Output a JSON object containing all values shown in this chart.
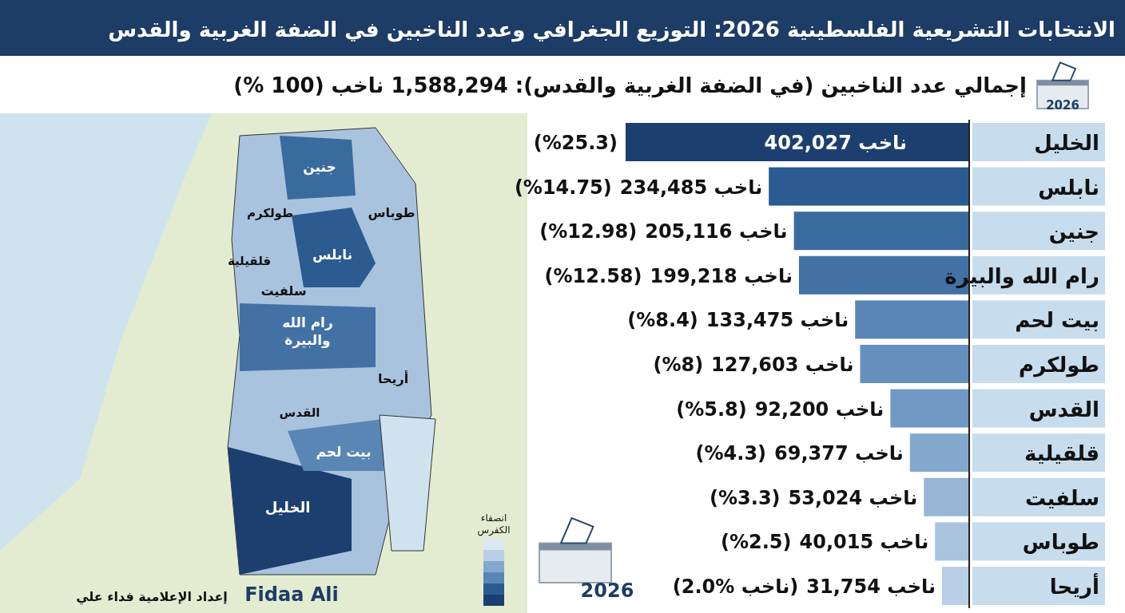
{
  "chart_data": {
    "type": "bar",
    "orientation": "horizontal",
    "data_labels": false,
    "title": "الانتخابات التشريعية الفلسطينية 2026: التوزيع الجغرافي وعدد الناخبين في الضفة الغربية والقدس",
    "subtitle": "إجمالي عدد الناخبين (في الضفة الغربية والقدس): 1,588,294 ناخب (100 %)",
    "categories": [
      "الخليل",
      "نابلس",
      "جنين",
      "رام الله والبيرة",
      "بيت لحم",
      "طولكرم",
      "القدس",
      "قلقيلية",
      "سلفيت",
      "طوباس",
      "أريحا"
    ],
    "values": [
      402027,
      234485,
      205116,
      199218,
      133475,
      127603,
      92200,
      69377,
      53024,
      40015,
      31754
    ],
    "colors": [
      "#1c3f70",
      "#2b5b91",
      "#3a6b9e",
      "#4272a5",
      "#5a86b5",
      "#6590bd",
      "#7199c3",
      "#84a8cd",
      "#97b6d6",
      "#a9c3de",
      "#b9cfe6"
    ],
    "value_labels": [
      "402,027 ناخب",
      "234,485 ناخب",
      "205,116 ناخب",
      "199,218 ناخب",
      "133,475 ناخب",
      "127,603 ناخب",
      "92,200 ناخب",
      "69,377 ناخب",
      "53,024 ناخب",
      "40,015 ناخب",
      "31,754 ناخب"
    ],
    "annotations": [
      "(%25.3)",
      "(%14.75)",
      "(%12.98)",
      "(%12.58)",
      "(%8.4)",
      "(%8)",
      "(%5.8)",
      "(%4.3)",
      "(%3.3)",
      "(%2.5)",
      "(2.0% ناخب)",
      "2026",
      "2026",
      "Fidaa Ali",
      "إعداد الإعلامية فداء علي",
      "انصفاء الكفرس",
      "جنين",
      "طوباس",
      "طولكرم",
      "نابلس",
      "قلقيلية",
      "سلفيت",
      "رام الله والبيرة",
      "أريحا",
      "القدس",
      "بيت لحم",
      "الخليل"
    ]
  }
}
